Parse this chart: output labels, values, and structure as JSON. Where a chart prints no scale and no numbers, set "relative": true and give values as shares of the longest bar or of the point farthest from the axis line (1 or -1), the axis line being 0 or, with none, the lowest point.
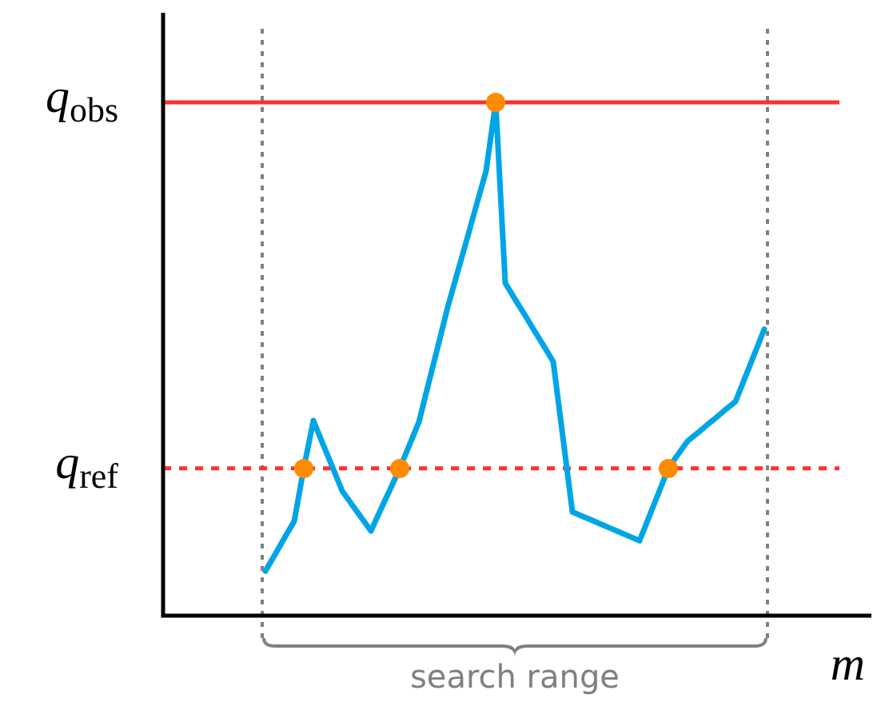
{
  "chart_data": {
    "type": "line",
    "relative": true,
    "xlabel": "m",
    "marker": "none",
    "categories": [
      null,
      null,
      null,
      null,
      null,
      null,
      null,
      null,
      null,
      null,
      null,
      null,
      null,
      null,
      null,
      null,
      null,
      null,
      null,
      null,
      null,
      null,
      null,
      null,
      null,
      null,
      null,
      null,
      null,
      null,
      null,
      null,
      null,
      null,
      null,
      null,
      null,
      null,
      null,
      null,
      null,
      null,
      null,
      null,
      null,
      null,
      null,
      null,
      null,
      null,
      null,
      null,
      null
    ],
    "series": [
      {
        "color": "#00a5e6",
        "values": [
          0.087,
          0.119,
          0.152,
          0.184,
          0.287,
          0.38,
          0.334,
          0.289,
          0.243,
          0.217,
          0.191,
          0.165,
          0.206,
          0.246,
          0.287,
          0.332,
          0.377,
          0.452,
          0.526,
          0.601,
          0.667,
          0.733,
          0.8,
          0.866,
          1,
          0.648,
          0.617,
          0.587,
          0.556,
          0.526,
          0.495,
          0.349,
          0.202,
          0.194,
          0.186,
          0.178,
          0.17,
          0.162,
          0.154,
          0.146,
          0.193,
          0.24,
          0.287,
          0.314,
          0.34,
          0.355,
          0.371,
          0.386,
          0.402,
          0.417,
          0.464,
          0.511,
          0.558
        ]
      }
    ],
    "ref_lines": [
      {
        "axis": "y",
        "value": 1,
        "label": "q$_{obs}$",
        "color": "#ff3030",
        "line_style": "solid"
      },
      {
        "axis": "y",
        "value": 0.287,
        "label": "q$_{ref}$",
        "color": "#ff3030",
        "line_style": "dashed"
      }
    ],
    "annotations": [
      "search range"
    ]
  }
}
